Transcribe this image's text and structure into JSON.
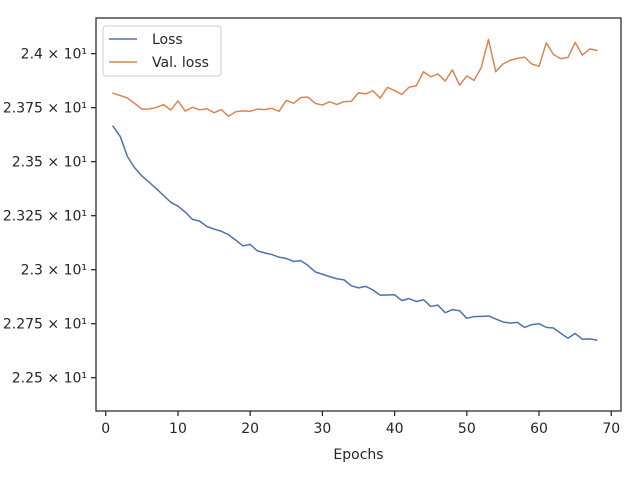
{
  "chart_data": {
    "type": "line",
    "xlabel": "Epochs",
    "ylabel": "",
    "xlim": [
      -1.35,
      71.35
    ],
    "ylim": [
      22.346,
      24.165
    ],
    "xticks": [
      0,
      10,
      20,
      30,
      40,
      50,
      60,
      70
    ],
    "yticks": [
      {
        "value": 22.5,
        "label": "2.25 × 10¹"
      },
      {
        "value": 22.75,
        "label": "2.275 × 10¹"
      },
      {
        "value": 23.0,
        "label": "2.3 × 10¹"
      },
      {
        "value": 23.25,
        "label": "2.325 × 10¹"
      },
      {
        "value": 23.5,
        "label": "2.35 × 10¹"
      },
      {
        "value": 23.75,
        "label": "2.375 × 10¹"
      },
      {
        "value": 24.0,
        "label": "2.4 × 10¹"
      }
    ],
    "legend_position": "upper-left",
    "grid": false,
    "x": [
      1,
      2,
      3,
      4,
      5,
      6,
      7,
      8,
      9,
      10,
      11,
      12,
      13,
      14,
      15,
      16,
      17,
      18,
      19,
      20,
      21,
      22,
      23,
      24,
      25,
      26,
      27,
      28,
      29,
      30,
      31,
      32,
      33,
      34,
      35,
      36,
      37,
      38,
      39,
      40,
      41,
      42,
      43,
      44,
      45,
      46,
      47,
      48,
      49,
      50,
      51,
      52,
      53,
      54,
      55,
      56,
      57,
      58,
      59,
      60,
      61,
      62,
      63,
      64,
      65,
      66,
      67,
      68
    ],
    "series": [
      {
        "name": "Loss",
        "color": "#4c72b0",
        "values": [
          23.664,
          23.617,
          23.524,
          23.472,
          23.434,
          23.405,
          23.375,
          23.344,
          23.312,
          23.294,
          23.267,
          23.233,
          23.225,
          23.2,
          23.188,
          23.178,
          23.162,
          23.137,
          23.11,
          23.117,
          23.087,
          23.078,
          23.07,
          23.058,
          23.052,
          23.038,
          23.042,
          23.02,
          22.99,
          22.979,
          22.968,
          22.958,
          22.953,
          22.926,
          22.916,
          22.923,
          22.906,
          22.882,
          22.883,
          22.884,
          22.857,
          22.866,
          22.853,
          22.861,
          22.83,
          22.836,
          22.801,
          22.815,
          22.81,
          22.775,
          22.783,
          22.784,
          22.786,
          22.772,
          22.758,
          22.753,
          22.756,
          22.733,
          22.746,
          22.75,
          22.733,
          22.73,
          22.706,
          22.683,
          22.705,
          22.678,
          22.68,
          22.674
        ]
      },
      {
        "name": "Val. loss",
        "color": "#dd8452",
        "values": [
          23.817,
          23.806,
          23.795,
          23.77,
          23.743,
          23.744,
          23.751,
          23.764,
          23.739,
          23.781,
          23.734,
          23.752,
          23.74,
          23.745,
          23.727,
          23.741,
          23.71,
          23.731,
          23.735,
          23.733,
          23.743,
          23.741,
          23.747,
          23.733,
          23.784,
          23.77,
          23.797,
          23.799,
          23.77,
          23.762,
          23.777,
          23.765,
          23.778,
          23.779,
          23.819,
          23.814,
          23.828,
          23.794,
          23.844,
          23.829,
          23.811,
          23.845,
          23.851,
          23.916,
          23.893,
          23.906,
          23.873,
          23.925,
          23.854,
          23.897,
          23.876,
          23.936,
          24.066,
          23.916,
          23.952,
          23.969,
          23.978,
          23.984,
          23.952,
          23.942,
          24.05,
          23.996,
          23.977,
          23.982,
          24.052,
          23.993,
          24.022,
          24.015
        ]
      }
    ]
  }
}
